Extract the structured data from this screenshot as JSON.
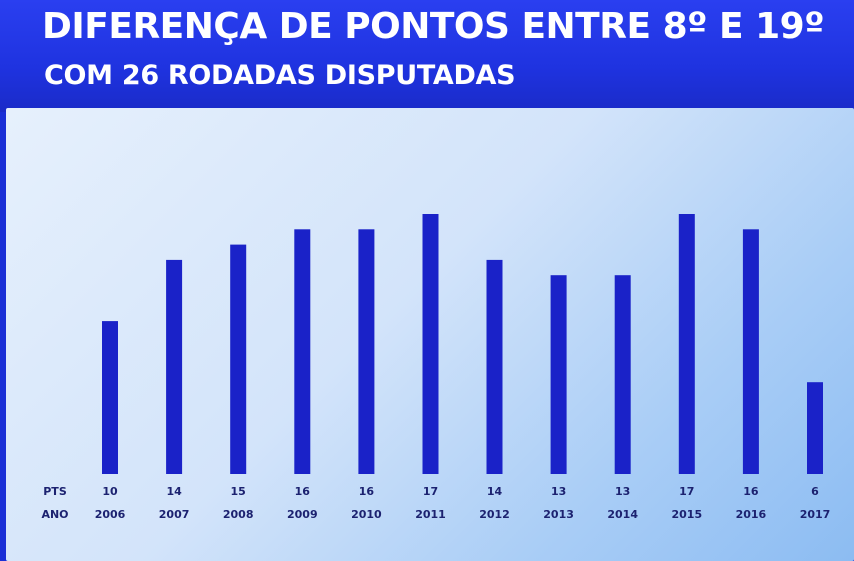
{
  "header": {
    "title": "DIFERENÇA DE PONTOS ENTRE 8º E 19º",
    "subtitle": "COM 26 RODADAS DISPUTADAS"
  },
  "chart_data": {
    "type": "bar",
    "title": "DIFERENÇA DE PONTOS ENTRE 8º E 19º",
    "subtitle": "COM 26 RODADAS DISPUTADAS",
    "categories": [
      "2006",
      "2007",
      "2008",
      "2009",
      "2010",
      "2011",
      "2012",
      "2013",
      "2014",
      "2015",
      "2016",
      "2017"
    ],
    "values": [
      10,
      14,
      15,
      16,
      16,
      17,
      14,
      13,
      13,
      17,
      16,
      6
    ],
    "row_labels": {
      "values": "PTS",
      "categories": "ANO"
    },
    "ylim": [
      0,
      17
    ],
    "grid": false,
    "bar_color": "#1a22c8"
  }
}
